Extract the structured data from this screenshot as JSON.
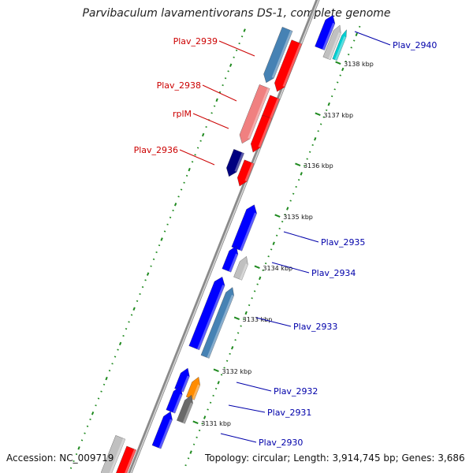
{
  "title": "Parvibaculum lavamentivorans DS-1, complete genome",
  "accession": "Accession: NC_009719",
  "summary": "Topology: circular; Length: 3,914,745 bp; Genes: 3,686",
  "colors": {
    "red": "#ff0000",
    "red_light": "#f08080",
    "blue": "#0000ff",
    "steel": "#4682b4",
    "navy": "#000080",
    "gray": "#c0c0c0",
    "dark_gray": "#696969",
    "orange": "#ff8c00",
    "cyan": "#00ced1",
    "tick_green": "#1f8a1f",
    "label_red": "#cc0000",
    "label_blue": "#0000aa"
  },
  "ticks": [
    {
      "kbp": 3138,
      "label": "3138 kbp"
    },
    {
      "kbp": 3137,
      "label": "3137 kbp"
    },
    {
      "kbp": 3136,
      "label": "3136 kbp"
    },
    {
      "kbp": 3135,
      "label": "3135 kbp"
    },
    {
      "kbp": 3134,
      "label": "3134 kbp"
    },
    {
      "kbp": 3133,
      "label": "3133 kbp"
    },
    {
      "kbp": 3132,
      "label": "3132 kbp"
    },
    {
      "kbp": 3131,
      "label": "3131 kbp"
    }
  ],
  "genes": [
    {
      "name": "Plav_2940",
      "strand": "+",
      "color": "cyan"
    },
    {
      "name": "Plav_2939",
      "strand": "-",
      "color": "steel"
    },
    {
      "name": "Plav_2938",
      "strand": "-",
      "color": "red_light"
    },
    {
      "name": "rplM",
      "strand": "-",
      "color": "red_light"
    },
    {
      "name": "Plav_2936",
      "strand": "-",
      "color": "navy"
    },
    {
      "name": "Plav_2935",
      "strand": "+",
      "color": "gray"
    },
    {
      "name": "Plav_2934",
      "strand": "+",
      "color": "gray"
    },
    {
      "name": "Plav_2933",
      "strand": "+",
      "color": "steel"
    },
    {
      "name": "Plav_2932",
      "strand": "+",
      "color": "orange"
    },
    {
      "name": "Plav_2931",
      "strand": "+",
      "color": "dark_gray"
    },
    {
      "name": "Plav_2930",
      "strand": "+",
      "color": "blue"
    }
  ]
}
